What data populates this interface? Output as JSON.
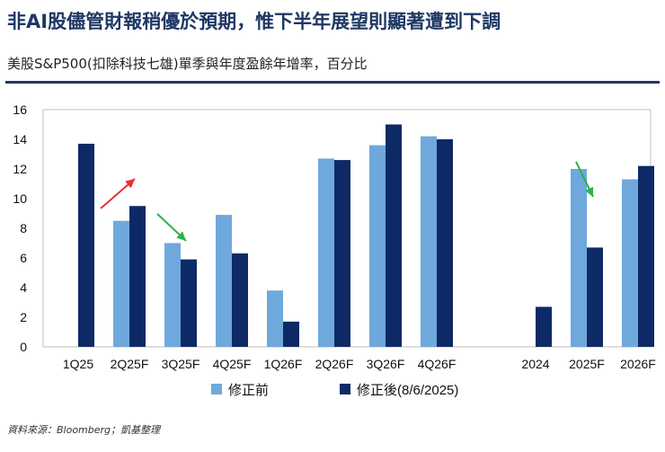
{
  "header": {
    "title": "非AI股儘管財報稍優於預期，惟下半年展望則顯著遭到下調",
    "subtitle": "美股S&P500(扣除科技七雄)單季與年度盈餘年增率，百分比"
  },
  "source": "資料來源：Bloomberg；凱基整理",
  "chart_data": {
    "type": "bar",
    "categories": [
      "1Q25",
      "2Q25F",
      "3Q25F",
      "4Q25F",
      "1Q26F",
      "2Q26F",
      "3Q26F",
      "4Q26F",
      "2024",
      "2025F",
      "2026F"
    ],
    "series": [
      {
        "name": "修正前",
        "color": "#6fa8dc",
        "values": [
          null,
          8.5,
          7.0,
          8.9,
          3.8,
          12.7,
          13.6,
          14.2,
          null,
          12.0,
          11.3
        ]
      },
      {
        "name": "修正後(8/6/2025)",
        "color": "#0d2a66",
        "values": [
          13.7,
          9.5,
          5.9,
          6.3,
          1.7,
          12.6,
          15.0,
          14.0,
          2.7,
          6.7,
          12.2
        ]
      }
    ],
    "yticks": [
      "0",
      "2",
      "4",
      "6",
      "8",
      "10",
      "12",
      "14",
      "16"
    ],
    "ylim": [
      0,
      16
    ],
    "annotations": [
      {
        "name": "up-arrow",
        "color": "#e8302a",
        "from_category": "2Q25F",
        "direction": "up"
      },
      {
        "name": "down-arrow",
        "color": "#2db34a",
        "from_category": "3Q25F",
        "direction": "down"
      },
      {
        "name": "down-arrow",
        "color": "#2db34a",
        "from_category": "2025F",
        "direction": "down"
      }
    ]
  }
}
